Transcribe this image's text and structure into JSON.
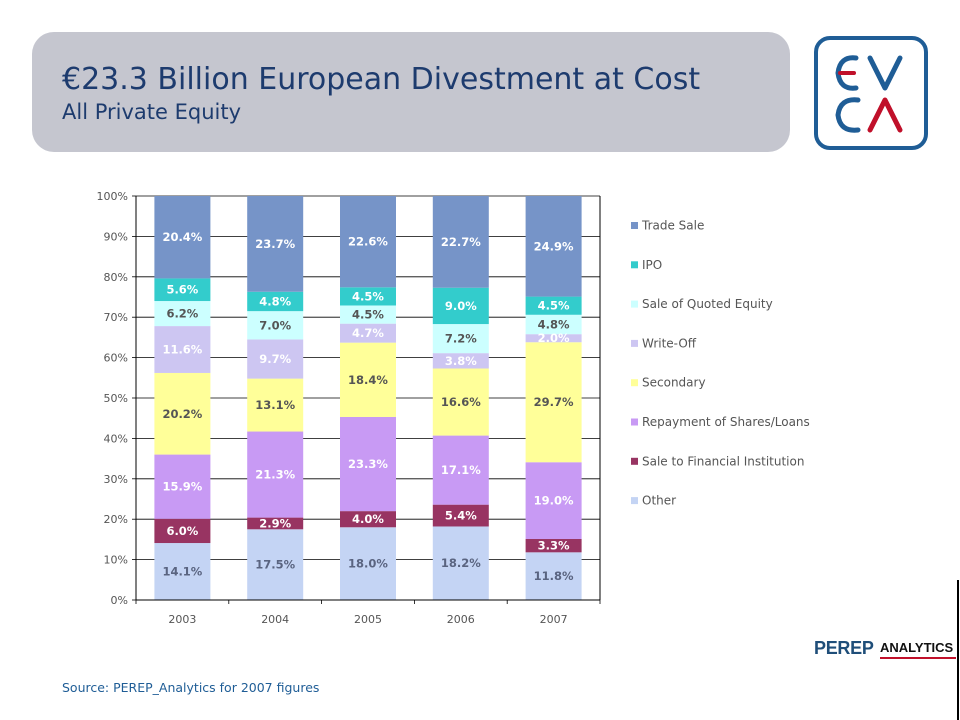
{
  "header": {
    "title": "€23.3 Billion European Divestment at Cost",
    "subtitle": "All Private Equity"
  },
  "logo": {
    "text": "EVCA",
    "colors": {
      "primary": "#1f5d96",
      "accent": "#c0102a"
    }
  },
  "source_note": "Source: PEREP_Analytics  for 2007 figures",
  "perep_logo": {
    "name": "PEREP",
    "tag": "ANALYTICS"
  },
  "chart_data": {
    "type": "bar",
    "stacked": true,
    "percent": true,
    "categories": [
      "2003",
      "2004",
      "2005",
      "2006",
      "2007"
    ],
    "y_ticks": [
      "0%",
      "10%",
      "20%",
      "30%",
      "40%",
      "50%",
      "60%",
      "70%",
      "80%",
      "90%",
      "100%"
    ],
    "ylim": [
      0,
      100
    ],
    "grid": true,
    "legend_position": "right",
    "series": [
      {
        "name": "Other",
        "color": "#c4d4f4",
        "label_color": "#5a6480",
        "values": [
          14.1,
          17.5,
          18.0,
          18.2,
          11.8
        ],
        "labels": [
          "14.1%",
          "17.5%",
          "18.0%",
          "18.2%",
          "11.8%"
        ]
      },
      {
        "name": "Sale to Financial Institution",
        "color": "#983462",
        "label_color": "#ffffff",
        "values": [
          6.0,
          2.9,
          4.0,
          5.4,
          3.3
        ],
        "labels": [
          "6.0%",
          "2.9%",
          "4.0%",
          "5.4%",
          "3.3%"
        ]
      },
      {
        "name": "Repayment of Shares/Loans",
        "color": "#c89af4",
        "label_color": "#ffffff",
        "values": [
          15.9,
          21.3,
          23.3,
          17.1,
          19.0
        ],
        "labels": [
          "15.9%",
          "21.3%",
          "23.3%",
          "17.1%",
          "19.0%"
        ]
      },
      {
        "name": "Secondary",
        "color": "#ffff99",
        "label_color": "#555555",
        "values": [
          20.2,
          13.1,
          18.4,
          16.6,
          29.7
        ],
        "labels": [
          "20.2%",
          "13.1%",
          "18.4%",
          "16.6%",
          "29.7%"
        ]
      },
      {
        "name": "Write-Off",
        "color": "#cdc6f2",
        "label_color": "#ffffff",
        "values": [
          11.6,
          9.7,
          4.7,
          3.8,
          2.0
        ],
        "labels": [
          "11.6%",
          "9.7%",
          "4.7%",
          "3.8%",
          "2.0%"
        ]
      },
      {
        "name": "Sale of Quoted Equity",
        "color": "#ccffff",
        "label_color": "#555555",
        "values": [
          6.2,
          7.0,
          4.5,
          7.2,
          4.8
        ],
        "labels": [
          "6.2%",
          "7.0%",
          "4.5%",
          "7.2%",
          "4.8%"
        ]
      },
      {
        "name": "IPO",
        "color": "#33cccc",
        "label_color": "#ffffff",
        "values": [
          5.6,
          4.8,
          4.5,
          9.0,
          4.5
        ],
        "labels": [
          "5.6%",
          "4.8%",
          "4.5%",
          "9.0%",
          "4.5%"
        ]
      },
      {
        "name": "Trade Sale",
        "color": "#7694c8",
        "label_color": "#ffffff",
        "values": [
          20.4,
          23.7,
          22.6,
          22.7,
          24.9
        ],
        "labels": [
          "20.4%",
          "23.7%",
          "22.6%",
          "22.7%",
          "24.9%"
        ]
      }
    ],
    "legend_order": [
      "Trade Sale",
      "IPO",
      "Sale of Quoted Equity",
      "Write-Off",
      "Secondary",
      "Repayment of Shares/Loans",
      "Sale to Financial Institution",
      "Other"
    ]
  }
}
